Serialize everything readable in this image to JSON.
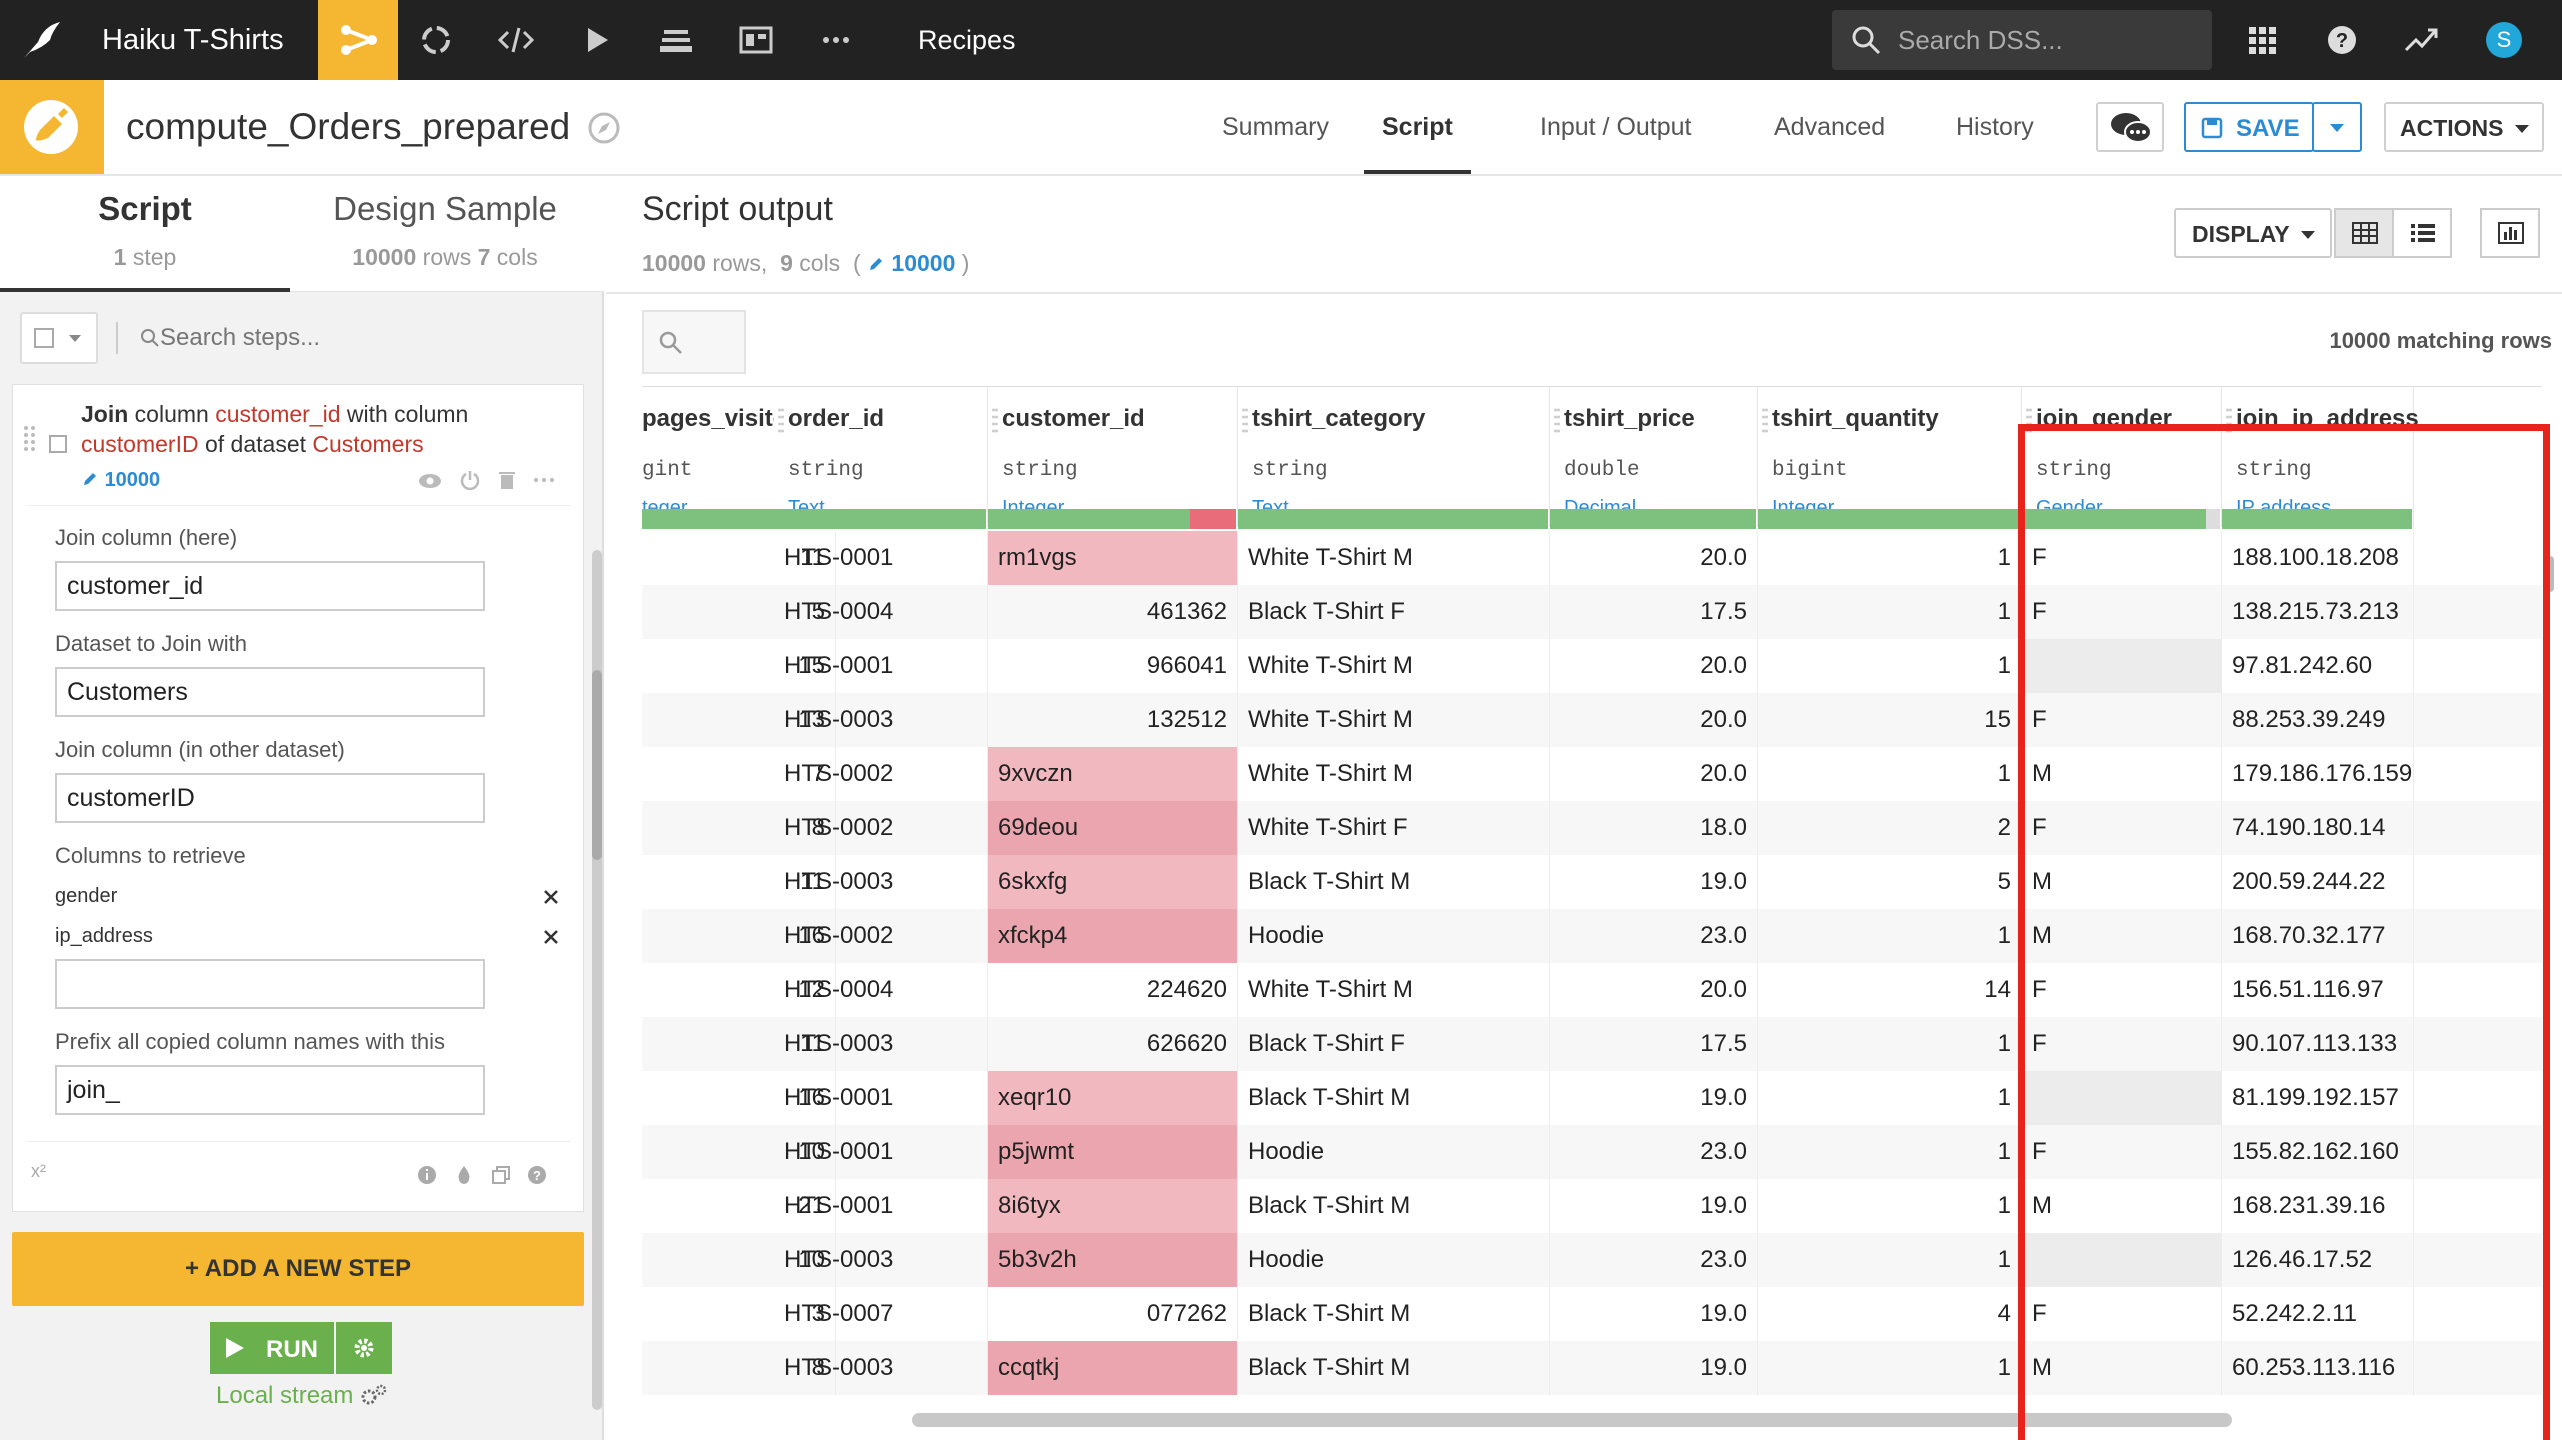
{
  "topnav": {
    "project_name": "Haiku T-Shirts",
    "section": "Recipes",
    "search_placeholder": "Search DSS...",
    "avatar_letter": "S",
    "icons": [
      "bird-logo-icon",
      "flow-icon",
      "refresh-icon",
      "code-icon",
      "play-icon",
      "stack-icon",
      "dashboard-icon",
      "more-icon",
      "search-icon",
      "apps-grid-icon",
      "help-icon",
      "activity-icon"
    ]
  },
  "recipe": {
    "name": "compute_Orders_prepared",
    "tabs": [
      "Summary",
      "Script",
      "Input / Output",
      "Advanced",
      "History"
    ],
    "active_tab": "Script",
    "save_label": "SAVE",
    "actions_label": "ACTIONS"
  },
  "left": {
    "tab_script": "Script",
    "tab_script_sub_num": "1",
    "tab_script_sub": "step",
    "tab_design": "Design Sample",
    "tab_design_rows": "10000",
    "tab_design_rows_label": "rows",
    "tab_design_cols": "7",
    "tab_design_cols_label": "cols",
    "search_placeholder": "Search steps...",
    "step": {
      "w1": "Join",
      "w2": "column",
      "col_here": "customer_id",
      "w3": "with column",
      "col_other": "customerID",
      "w4": "of dataset",
      "dataset": "Customers",
      "badge": "10000"
    },
    "fields": {
      "join_here_label": "Join column (here)",
      "join_here_value": "customer_id",
      "dataset_label": "Dataset to Join with",
      "dataset_value": "Customers",
      "join_other_label": "Join column (in other dataset)",
      "join_other_value": "customerID",
      "retrieve_label": "Columns to retrieve",
      "retrieve_items": [
        "gender",
        "ip_address"
      ],
      "prefix_label": "Prefix all copied column names with this",
      "prefix_value": "join_"
    },
    "footer_symbol": "x²",
    "add_step": "+ ADD A NEW STEP",
    "run": "RUN",
    "local_stream": "Local stream"
  },
  "output": {
    "title": "Script output",
    "rows": "10000",
    "rows_label": "rows,",
    "cols": "9",
    "cols_label": "cols",
    "sample": "10000",
    "display_label": "DISPLAY",
    "matching": "10000 matching rows"
  },
  "table": {
    "columns": [
      {
        "name": "pages_visited",
        "type": "gint",
        "meaning": "teger"
      },
      {
        "name": "order_id",
        "type": "string",
        "meaning": ""
      },
      {
        "name": "customer_id",
        "type": "string",
        "meaning": "Integer"
      },
      {
        "name": "tshirt_category",
        "type": "string",
        "meaning": "Text"
      },
      {
        "name": "tshirt_price",
        "type": "double",
        "meaning": "Decimal"
      },
      {
        "name": "tshirt_quantity",
        "type": "bigint",
        "meaning": "Integer"
      },
      {
        "name": "join_gender",
        "type": "string",
        "meaning": "Gender"
      },
      {
        "name": "join_ip_address",
        "type": "string",
        "meaning": "IP address"
      }
    ],
    "order_meaning": "Text",
    "rows": [
      [
        "11",
        "HTS-0001",
        "rm1vgs",
        "White T-Shirt M",
        "20.0",
        "1",
        "F",
        "188.100.18.208"
      ],
      [
        "5",
        "HTS-0004",
        "461362",
        "Black T-Shirt F",
        "17.5",
        "1",
        "F",
        "138.215.73.213"
      ],
      [
        "15",
        "HTS-0001",
        "966041",
        "White T-Shirt M",
        "20.0",
        "1",
        "",
        "97.81.242.60"
      ],
      [
        "13",
        "HTS-0003",
        "132512",
        "White T-Shirt M",
        "20.0",
        "15",
        "F",
        "88.253.39.249"
      ],
      [
        "7",
        "HTS-0002",
        "9xvczn",
        "White T-Shirt M",
        "20.0",
        "1",
        "M",
        "179.186.176.159"
      ],
      [
        "8",
        "HTS-0002",
        "69deou",
        "White T-Shirt F",
        "18.0",
        "2",
        "F",
        "74.190.180.14"
      ],
      [
        "11",
        "HTS-0003",
        "6skxfg",
        "Black T-Shirt M",
        "19.0",
        "5",
        "M",
        "200.59.244.22"
      ],
      [
        "16",
        "HTS-0002",
        "xfckp4",
        "Hoodie",
        "23.0",
        "1",
        "M",
        "168.70.32.177"
      ],
      [
        "12",
        "HTS-0004",
        "224620",
        "White T-Shirt M",
        "20.0",
        "14",
        "F",
        "156.51.116.97"
      ],
      [
        "11",
        "HTS-0003",
        "626620",
        "Black T-Shirt F",
        "17.5",
        "1",
        "F",
        "90.107.113.133"
      ],
      [
        "16",
        "HTS-0001",
        "xeqr10",
        "Black T-Shirt M",
        "19.0",
        "1",
        "",
        "81.199.192.157"
      ],
      [
        "10",
        "HTS-0001",
        "p5jwmt",
        "Hoodie",
        "23.0",
        "1",
        "F",
        "155.82.162.160"
      ],
      [
        "21",
        "HTS-0001",
        "8i6tyx",
        "Black T-Shirt M",
        "19.0",
        "1",
        "M",
        "168.231.39.16"
      ],
      [
        "10",
        "HTS-0003",
        "5b3v2h",
        "Hoodie",
        "23.0",
        "1",
        "",
        "126.46.17.52"
      ],
      [
        "3",
        "HTS-0007",
        "077262",
        "Black T-Shirt M",
        "19.0",
        "4",
        "F",
        "52.242.2.11"
      ],
      [
        "8",
        "HTS-0003",
        "ccqtkj",
        "Black T-Shirt M",
        "19.0",
        "1",
        "M",
        "60.253.113.116"
      ]
    ]
  }
}
